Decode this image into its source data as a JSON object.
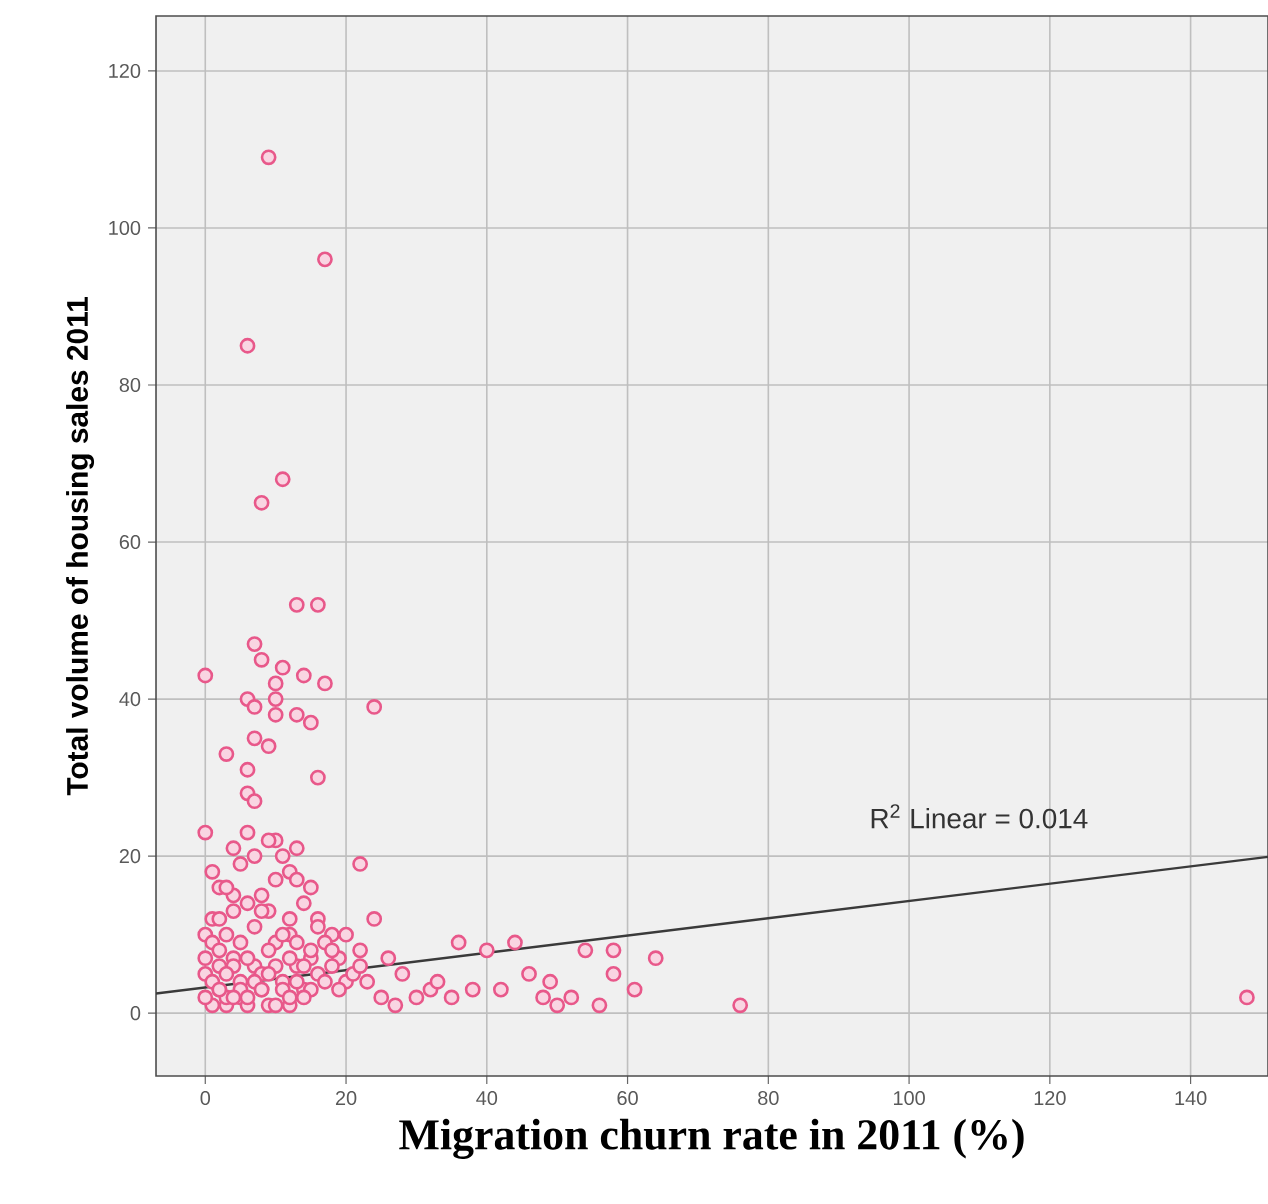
{
  "chart_data": {
    "type": "scatter",
    "xlabel": "Migration churn rate in 2011 (%)",
    "ylabel": "Total volume of housing sales 2011",
    "xlim": [
      -7,
      151
    ],
    "ylim": [
      -8,
      127
    ],
    "xticks": [
      0,
      20,
      40,
      60,
      80,
      100,
      120,
      140
    ],
    "yticks": [
      0,
      20,
      40,
      60,
      80,
      100,
      120
    ],
    "grid": true,
    "annotations": [
      "R$^{2}$ Linear = 0.014"
    ],
    "series": [
      {
        "marker": "circle",
        "color": "#e8588a",
        "x": [
          1,
          2,
          3,
          5,
          6,
          8,
          9,
          11,
          12,
          14,
          4,
          7,
          10,
          13,
          0,
          1,
          2,
          3,
          5,
          9,
          12,
          15,
          16,
          9,
          17,
          6,
          11,
          8,
          13,
          16,
          0,
          7,
          8,
          10,
          11,
          14,
          17,
          6,
          7,
          10,
          10,
          13,
          15,
          24,
          9,
          7,
          3,
          16,
          6,
          6,
          7,
          6,
          0,
          4,
          10,
          13,
          22,
          24,
          22,
          7,
          12,
          2,
          4,
          8,
          10,
          1,
          3,
          5,
          9,
          11,
          13,
          15,
          2,
          4,
          6,
          8,
          12,
          14,
          16,
          18,
          1,
          3,
          5,
          7,
          9,
          11,
          13,
          15,
          17,
          19,
          0,
          2,
          4,
          6,
          8,
          10,
          12,
          14,
          16,
          18,
          20,
          0,
          1,
          3,
          5,
          7,
          9,
          11,
          13,
          15,
          17,
          21,
          23,
          0,
          2,
          4,
          6,
          8,
          10,
          12,
          14,
          19,
          25,
          27,
          30,
          32,
          35,
          36,
          38,
          40,
          42,
          46,
          44,
          49,
          54,
          58,
          58,
          64,
          61,
          56,
          52,
          50,
          76,
          148,
          28,
          26,
          22,
          20,
          18,
          33,
          48
        ],
        "values": [
          1,
          3,
          1,
          2,
          1,
          3,
          1,
          4,
          1,
          3,
          7,
          6,
          9,
          6,
          10,
          12,
          6,
          2,
          4,
          13,
          10,
          7,
          12,
          109,
          96,
          85,
          68,
          65,
          52,
          52,
          43,
          47,
          45,
          42,
          44,
          43,
          42,
          40,
          39,
          40,
          38,
          38,
          37,
          39,
          34,
          35,
          33,
          30,
          31,
          28,
          27,
          23,
          23,
          21,
          22,
          21,
          19,
          12,
          8,
          20,
          18,
          16,
          15,
          13,
          17,
          18,
          16,
          19,
          22,
          20,
          17,
          16,
          12,
          13,
          14,
          15,
          12,
          14,
          11,
          10,
          9,
          10,
          9,
          11,
          8,
          10,
          9,
          8,
          9,
          7,
          7,
          8,
          6,
          7,
          5,
          6,
          7,
          6,
          5,
          6,
          4,
          5,
          4,
          5,
          3,
          4,
          5,
          3,
          4,
          3,
          4,
          5,
          4,
          2,
          3,
          2,
          2,
          3,
          1,
          2,
          2,
          3,
          2,
          1,
          2,
          3,
          2,
          9,
          3,
          8,
          3,
          5,
          9,
          4,
          8,
          8,
          5,
          7,
          3,
          1,
          2,
          1,
          1,
          2,
          5,
          7,
          6,
          10,
          8,
          4,
          2
        ]
      },
      {
        "type": "line",
        "marker": "none",
        "color": "#3a3a3a",
        "x": [
          -7,
          151
        ],
        "values": [
          2.5,
          19.9
        ]
      }
    ]
  }
}
